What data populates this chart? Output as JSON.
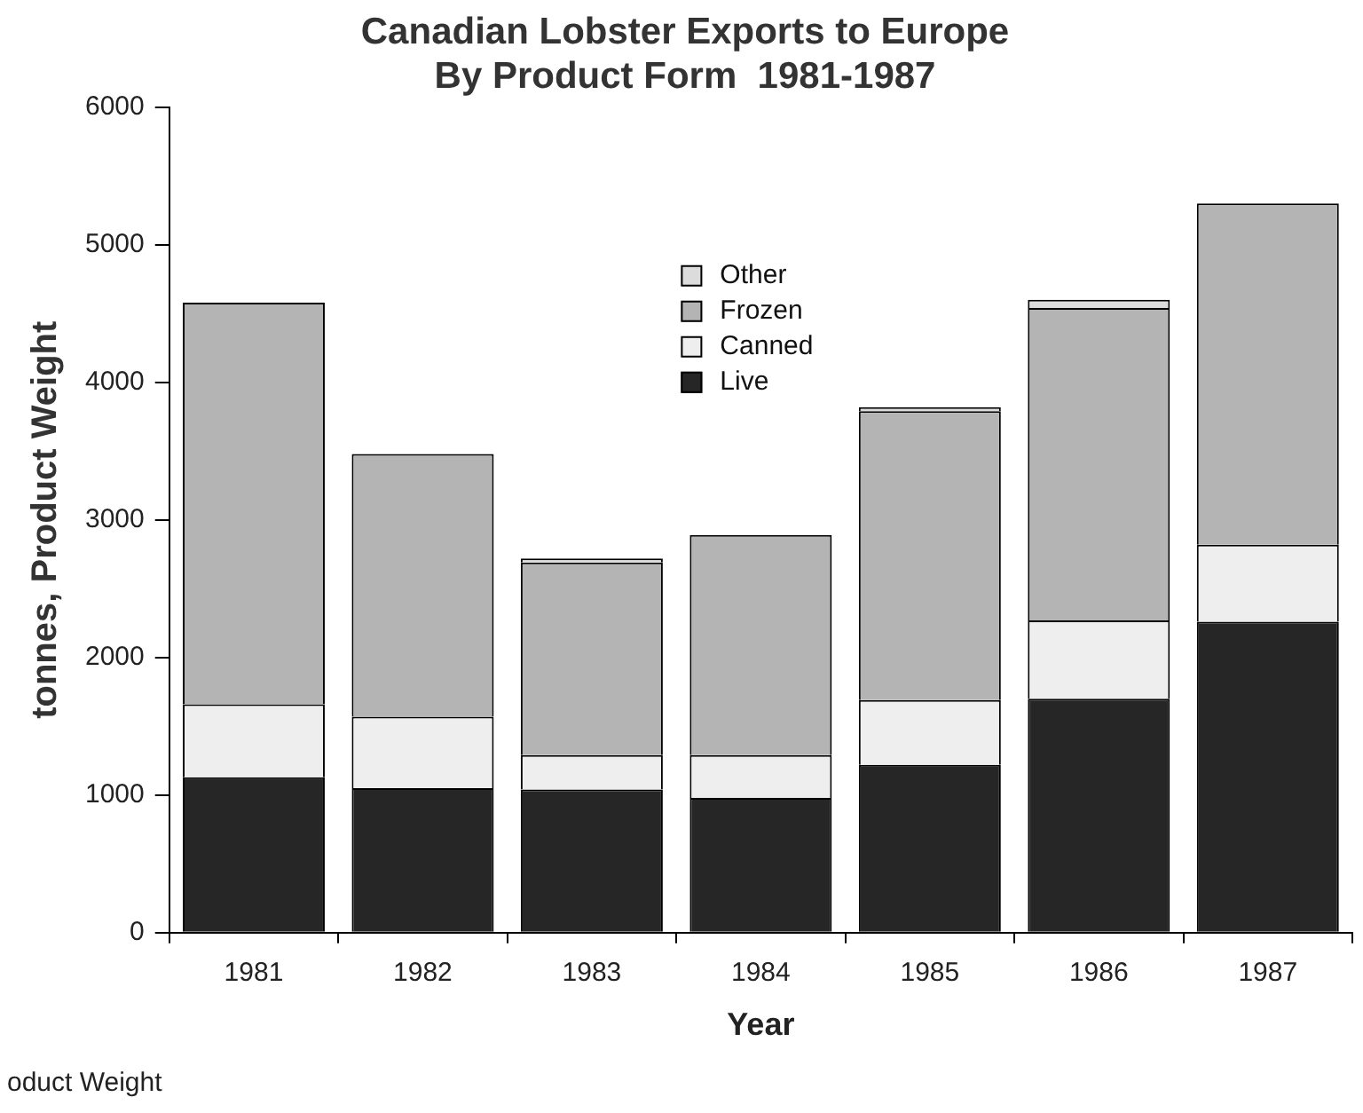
{
  "chart_data": {
    "type": "bar",
    "title": "Canadian Lobster Exports to Europe\nBy Product Form  1981-1987",
    "xlabel": "Year",
    "ylabel": "tonnes, Product Weight",
    "annotations": [
      "oduct Weight"
    ],
    "categories": [
      "1981",
      "1982",
      "1983",
      "1984",
      "1985",
      "1986",
      "1987"
    ],
    "stacked": true,
    "legend": "top",
    "grid": false,
    "ylim": [
      0,
      6000
    ],
    "yticks": [
      0,
      1000,
      2000,
      3000,
      4000,
      5000,
      6000
    ],
    "series": [
      {
        "name": "Live",
        "color": "#262626",
        "values": [
          1130,
          1050,
          1040,
          980,
          1220,
          1700,
          2260
        ]
      },
      {
        "name": "Canned",
        "color": "#eeeeee",
        "values": [
          530,
          520,
          250,
          310,
          470,
          570,
          560
        ]
      },
      {
        "name": "Frozen",
        "color": "#b4b4b4",
        "values": [
          2920,
          1910,
          1400,
          1600,
          2100,
          2270,
          2480
        ]
      },
      {
        "name": "Other",
        "color": "#dcdcdc",
        "values": [
          0,
          0,
          30,
          0,
          30,
          60,
          0
        ]
      }
    ]
  }
}
